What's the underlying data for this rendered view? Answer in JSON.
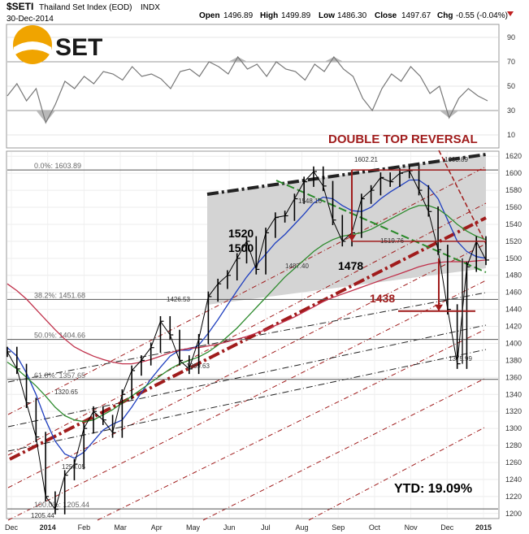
{
  "header": {
    "symbol": "$SETI",
    "name": "Thailand Set Index (EOD)",
    "exchange": "INDX",
    "date": "30-Dec-2014",
    "open_label": "Open",
    "open": "1496.89",
    "high_label": "High",
    "high": "1499.89",
    "low_label": "Low",
    "low": "1486.30",
    "close_label": "Close",
    "close": "1497.67",
    "chg_label": "Chg",
    "chg": "-0.55 (-0.04%)"
  },
  "logo": {
    "text": "SET",
    "color": "#f0a400"
  },
  "colors": {
    "price": "#000000",
    "ma_short": "#1f3fbf",
    "ma_mid": "#2e8b2e",
    "ma_long": "#c0304a",
    "annotation": "#a01c1c",
    "channel_fill": "#d4d4d4",
    "rsi_fill": "#b8b8b8"
  },
  "chart_data": [
    {
      "type": "line",
      "name": "RSI",
      "ylim": [
        0,
        100
      ],
      "ytick_labels": [
        "90",
        "70",
        "50",
        "30",
        "10"
      ],
      "ticks": [
        90,
        70,
        50,
        30,
        10
      ],
      "reference_lines": [
        70,
        30
      ],
      "x": [
        0,
        0.02,
        0.04,
        0.06,
        0.08,
        0.1,
        0.12,
        0.14,
        0.16,
        0.18,
        0.2,
        0.22,
        0.24,
        0.26,
        0.28,
        0.3,
        0.32,
        0.34,
        0.36,
        0.38,
        0.4,
        0.42,
        0.44,
        0.46,
        0.48,
        0.5,
        0.52,
        0.54,
        0.56,
        0.58,
        0.6,
        0.62,
        0.64,
        0.66,
        0.68,
        0.7,
        0.72,
        0.74,
        0.76,
        0.78,
        0.8,
        0.82,
        0.84,
        0.86,
        0.88,
        0.9,
        0.92,
        0.94,
        0.96,
        0.98,
        1
      ],
      "values": [
        42,
        52,
        38,
        48,
        20,
        35,
        54,
        48,
        58,
        52,
        62,
        60,
        55,
        66,
        58,
        60,
        56,
        48,
        62,
        64,
        58,
        70,
        66,
        60,
        74,
        64,
        68,
        58,
        70,
        64,
        62,
        55,
        68,
        62,
        74,
        64,
        58,
        40,
        30,
        48,
        60,
        54,
        66,
        58,
        44,
        50,
        24,
        40,
        48,
        42,
        38
      ]
    },
    {
      "type": "line",
      "name": "Thailand Set Index (EOD)",
      "ylim": [
        1195,
        1625
      ],
      "ytick_labels": [
        "1620",
        "1600",
        "1580",
        "1560",
        "1540",
        "1520",
        "1500",
        "1480",
        "1460",
        "1440",
        "1420",
        "1400",
        "1380",
        "1360",
        "1340",
        "1320",
        "1300",
        "1280",
        "1260",
        "1240",
        "1220",
        "1200"
      ],
      "ticks": [
        1620,
        1600,
        1580,
        1560,
        1540,
        1520,
        1500,
        1480,
        1460,
        1440,
        1420,
        1400,
        1380,
        1360,
        1340,
        1320,
        1300,
        1280,
        1260,
        1240,
        1220,
        1200
      ],
      "xtick_labels": [
        "Dec",
        "2014",
        "Feb",
        "Mar",
        "Apr",
        "May",
        "Jun",
        "Jul",
        "Aug",
        "Sep",
        "Oct",
        "Nov",
        "Dec",
        "2015"
      ],
      "x": [
        0,
        0.02,
        0.04,
        0.06,
        0.08,
        0.1,
        0.12,
        0.14,
        0.16,
        0.18,
        0.2,
        0.22,
        0.24,
        0.26,
        0.28,
        0.3,
        0.32,
        0.34,
        0.36,
        0.38,
        0.4,
        0.42,
        0.44,
        0.46,
        0.48,
        0.5,
        0.52,
        0.54,
        0.56,
        0.58,
        0.6,
        0.62,
        0.64,
        0.66,
        0.68,
        0.7,
        0.72,
        0.74,
        0.76,
        0.78,
        0.8,
        0.82,
        0.84,
        0.86,
        0.88,
        0.9,
        0.92,
        0.94,
        0.96,
        0.98,
        1
      ],
      "values": [
        1390,
        1370,
        1330,
        1290,
        1220,
        1205,
        1245,
        1258,
        1300,
        1320,
        1310,
        1295,
        1340,
        1368,
        1380,
        1395,
        1426,
        1410,
        1380,
        1370,
        1405,
        1455,
        1470,
        1480,
        1500,
        1520,
        1487,
        1530,
        1548,
        1550,
        1570,
        1590,
        1602,
        1585,
        1545,
        1520,
        1530,
        1570,
        1580,
        1595,
        1590,
        1600,
        1603,
        1580,
        1555,
        1510,
        1440,
        1376,
        1490,
        1520,
        1498
      ],
      "series": [
        {
          "name": "MA short",
          "values": [
            1395,
            1385,
            1365,
            1340,
            1310,
            1285,
            1270,
            1265,
            1272,
            1285,
            1298,
            1305,
            1310,
            1325,
            1342,
            1358,
            1372,
            1385,
            1392,
            1392,
            1398,
            1412,
            1428,
            1445,
            1462,
            1478,
            1492,
            1505,
            1518,
            1528,
            1540,
            1552,
            1565,
            1572,
            1570,
            1562,
            1556,
            1555,
            1560,
            1570,
            1578,
            1585,
            1592,
            1592,
            1584,
            1570,
            1545,
            1520,
            1508,
            1502,
            1500
          ]
        },
        {
          "name": "MA mid",
          "values": [
            1378,
            1370,
            1360,
            1350,
            1338,
            1325,
            1315,
            1310,
            1308,
            1310,
            1316,
            1322,
            1330,
            1338,
            1346,
            1354,
            1362,
            1370,
            1376,
            1380,
            1384,
            1390,
            1398,
            1408,
            1418,
            1430,
            1442,
            1454,
            1466,
            1478,
            1488,
            1498,
            1508,
            1516,
            1522,
            1526,
            1528,
            1530,
            1534,
            1540,
            1546,
            1552,
            1558,
            1562,
            1562,
            1558,
            1550,
            1540,
            1532,
            1526,
            1522
          ]
        },
        {
          "name": "MA long",
          "values": [
            1470,
            1462,
            1452,
            1440,
            1428,
            1416,
            1405,
            1396,
            1390,
            1385,
            1381,
            1378,
            1376,
            1376,
            1378,
            1381,
            1385,
            1389,
            1392,
            1394,
            1395,
            1397,
            1399,
            1402,
            1405,
            1408,
            1412,
            1416,
            1421,
            1426,
            1431,
            1437,
            1443,
            1449,
            1454,
            1458,
            1462,
            1466,
            1470,
            1474,
            1478,
            1482,
            1486,
            1490,
            1493,
            1495,
            1496,
            1496,
            1496,
            1497,
            1498
          ]
        }
      ],
      "fib_levels": [
        {
          "label": "0.0%: 1603.89",
          "value": 1603.89
        },
        {
          "label": "38.2%: 1451.68",
          "value": 1451.68
        },
        {
          "label": "50.0%: 1404.66",
          "value": 1404.66
        },
        {
          "label": "61.8%: 1357.65",
          "value": 1357.65
        },
        {
          "label": "100.0%: 1205.44",
          "value": 1205.44
        }
      ],
      "annotations": [
        {
          "text": "DOUBLE TOP REVERSAL"
        },
        {
          "text": "YTD: 19.09%"
        },
        {
          "text": "1520",
          "value": 1520
        },
        {
          "text": "1500",
          "value": 1500
        },
        {
          "text": "1478",
          "value": 1478
        },
        {
          "text": "1438",
          "value": 1438
        },
        {
          "text": "1602.21",
          "value": 1602.21
        },
        {
          "text": "1603.89",
          "value": 1603.89
        },
        {
          "text": "1548.16",
          "value": 1548.16
        },
        {
          "text": "1519.76",
          "value": 1519.76
        },
        {
          "text": "1487.40",
          "value": 1487.4
        },
        {
          "text": "1426.53",
          "value": 1426.53
        },
        {
          "text": "1369.63",
          "value": 1369.63
        },
        {
          "text": "1375.99",
          "value": 1375.99
        },
        {
          "text": "1320.65",
          "value": 1320.65
        },
        {
          "text": "1258.05",
          "value": 1258.05
        },
        {
          "text": "1205.44",
          "value": 1205.44
        }
      ],
      "grid": true
    }
  ]
}
